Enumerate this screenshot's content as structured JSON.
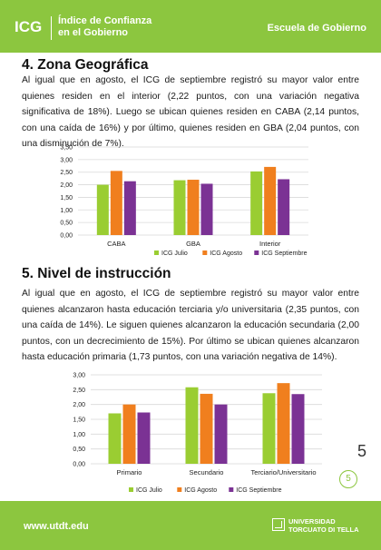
{
  "header": {
    "logo": "ICG",
    "logo_line1": "Índice de Confianza",
    "logo_line2": "en el Gobierno",
    "right": "Escuela de Gobierno"
  },
  "section4": {
    "title": "4. Zona Geográfica",
    "text": "Al igual que en agosto, el ICG de septiembre registró su mayor valor entre quienes residen en el interior (2,22 puntos, con una variación negativa significativa de 18%). Luego se ubican quienes residen en CABA (2,14 puntos, con una caída de 16%) y por último, quienes residen en GBA (2,04 puntos, con una disminución de 7%)."
  },
  "section5": {
    "title": "5. Nivel de instrucción",
    "text": "Al igual que en agosto, el ICG de septiembre registró su mayor valor entre quienes alcanzaron hasta educación terciaria y/o universitaria (2,35 puntos, con una caída de 14%). Le siguen quienes alcanzaron la educación secundaria (2,00 puntos, con un decrecimiento de 15%). Por último se ubican quienes alcanzaron hasta educación primaria (1,73 puntos, con una variación negativa de 14%)."
  },
  "chart_data": [
    {
      "type": "bar",
      "categories": [
        "CABA",
        "GBA",
        "Interior"
      ],
      "series": [
        {
          "name": "ICG Julio",
          "values": [
            2.0,
            2.18,
            2.53
          ]
        },
        {
          "name": "ICG Agosto",
          "values": [
            2.55,
            2.2,
            2.71
          ]
        },
        {
          "name": "ICG Septiembre",
          "values": [
            2.14,
            2.04,
            2.22
          ]
        }
      ],
      "ylim": [
        0,
        3.5
      ],
      "yticks": [
        0,
        0.5,
        1,
        1.5,
        2,
        2.5,
        3,
        3.5
      ],
      "ytick_labels": [
        "0,00",
        "0,50",
        "1,00",
        "1,50",
        "2,00",
        "2,50",
        "3,00",
        "3,50"
      ],
      "colors": [
        "#9acd32",
        "#f07f1e",
        "#7b3294"
      ],
      "grid": true,
      "legend": "bottom"
    },
    {
      "type": "bar",
      "categories": [
        "Primario",
        "Secundario",
        "Terciario/Universitario"
      ],
      "series": [
        {
          "name": "ICG Julio",
          "values": [
            1.7,
            2.58,
            2.38
          ]
        },
        {
          "name": "ICG Agosto",
          "values": [
            2.0,
            2.36,
            2.72
          ]
        },
        {
          "name": "ICG Septiembre",
          "values": [
            1.73,
            2.0,
            2.35
          ]
        }
      ],
      "ylim": [
        0,
        3.0
      ],
      "yticks": [
        0,
        0.5,
        1,
        1.5,
        2,
        2.5,
        3
      ],
      "ytick_labels": [
        "0,00",
        "0,50",
        "1,00",
        "1,50",
        "2,00",
        "2,50",
        "3,00"
      ],
      "colors": [
        "#9acd32",
        "#f07f1e",
        "#7b3294"
      ],
      "grid": true,
      "legend": "bottom"
    }
  ],
  "page": {
    "number": "5",
    "number_small": "5"
  },
  "footer": {
    "url": "www.utdt.edu",
    "uni_line1": "UNIVERSIDAD",
    "uni_line2": "TORCUATO DI TELLA"
  }
}
